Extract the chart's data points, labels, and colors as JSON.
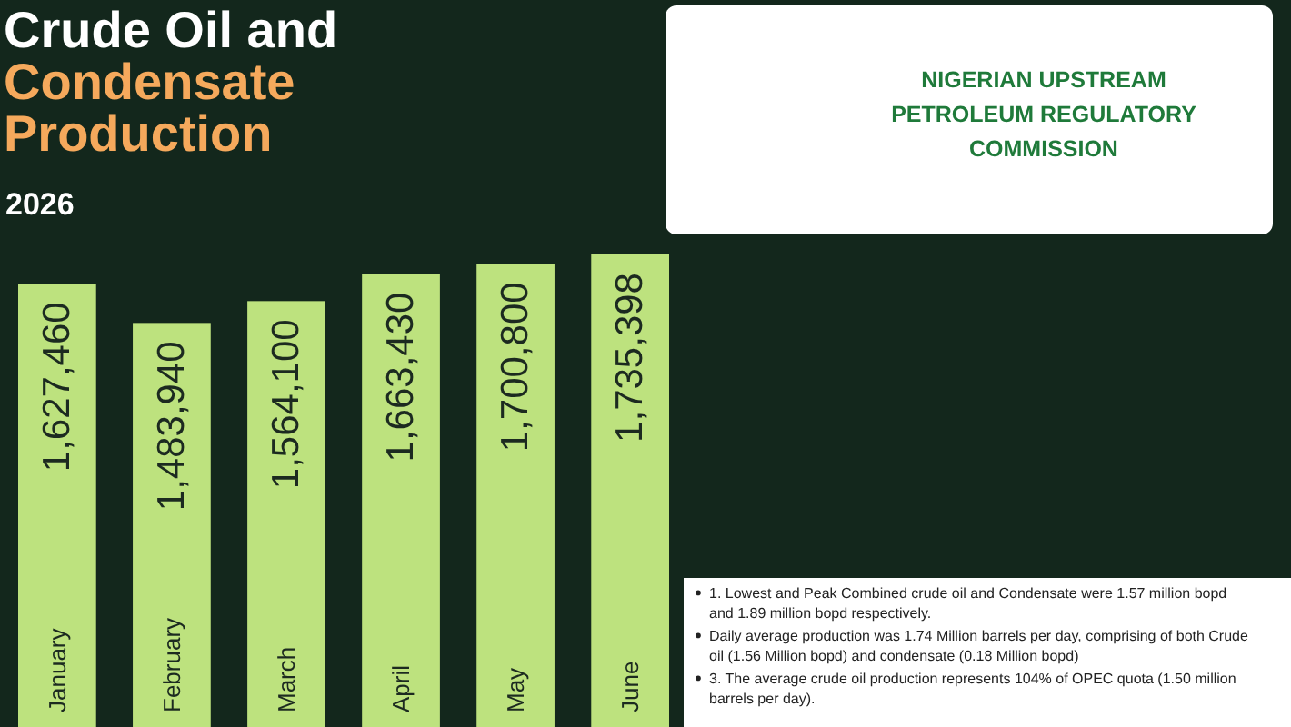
{
  "chart_data": {
    "type": "bar",
    "title": "Crude Oil and Condensate Production",
    "subtitle": "2026",
    "categories": [
      "January",
      "February",
      "March",
      "April",
      "May",
      "June"
    ],
    "values": [
      1627460,
      1483940,
      1564100,
      1663430,
      1700800,
      1735398
    ],
    "value_labels": [
      "1,627,460",
      "1,483,940",
      "1,564,100",
      "1,663,430",
      "1,700,800",
      "1,735,398"
    ],
    "color": "#bde27e",
    "tick_labels": "x",
    "annotations": [
      "NIGERIAN UPSTREAM PETROLEUM REGULATORY COMMISSION",
      "1. Lowest and Peak Combined crude oil and Condensate were 1.57 million bopd and 1.89 million bopd respectively.",
      "Daily average production was 1.74 Million barrels per day, comprising of both Crude oil (1.56 Million bopd) and condensate (0.18 Million bopd)",
      "3. The average crude oil production represents 104% of OPEC quota (1.50 million barrels per day)."
    ]
  }
}
